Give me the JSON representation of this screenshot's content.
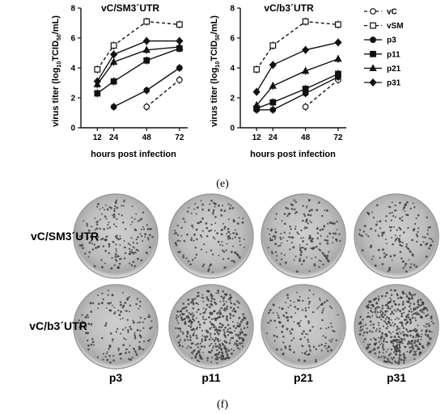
{
  "chart_data": [
    {
      "type": "line",
      "title": "vC/SM3´UTR",
      "xlabel": "hours post infection",
      "ylabel_parts": [
        "virus titer (log",
        "10",
        "TCID",
        "50",
        "/mL)"
      ],
      "x_ticks": [
        12,
        24,
        48,
        72
      ],
      "y_ticks": [
        0,
        2,
        4,
        6,
        8
      ],
      "xlim": [
        0,
        78
      ],
      "ylim": [
        0,
        8
      ],
      "series": [
        {
          "name": "vC",
          "marker": "circle-open",
          "dashed": true,
          "x": [
            48,
            72
          ],
          "y": [
            1.4,
            3.2
          ]
        },
        {
          "name": "vSM",
          "marker": "square-open",
          "dashed": true,
          "x": [
            12,
            24,
            48,
            72
          ],
          "y": [
            3.9,
            5.5,
            7.1,
            6.9
          ]
        },
        {
          "name": "p3",
          "marker": "circle",
          "dashed": false,
          "x": [
            24,
            48,
            72
          ],
          "y": [
            1.4,
            2.5,
            4.0
          ]
        },
        {
          "name": "p11",
          "marker": "square",
          "dashed": false,
          "x": [
            12,
            24,
            48,
            72
          ],
          "y": [
            2.3,
            3.1,
            4.5,
            5.3
          ]
        },
        {
          "name": "p21",
          "marker": "triangle",
          "dashed": false,
          "x": [
            12,
            24,
            48,
            72
          ],
          "y": [
            2.9,
            4.4,
            5.2,
            5.4
          ]
        },
        {
          "name": "p31",
          "marker": "diamond",
          "dashed": false,
          "x": [
            12,
            24,
            48,
            72
          ],
          "y": [
            3.1,
            4.9,
            5.8,
            5.8
          ]
        }
      ]
    },
    {
      "type": "line",
      "title": "vC/b3´UTR",
      "xlabel": "hours post infection",
      "ylabel_parts": [
        "virus titer (log",
        "10",
        "TCID",
        "50",
        "/mL)"
      ],
      "x_ticks": [
        12,
        24,
        48,
        72
      ],
      "y_ticks": [
        0,
        2,
        4,
        6,
        8
      ],
      "xlim": [
        0,
        78
      ],
      "ylim": [
        0,
        8
      ],
      "series": [
        {
          "name": "vC",
          "marker": "circle-open",
          "dashed": true,
          "x": [
            48,
            72
          ],
          "y": [
            1.4,
            3.2
          ]
        },
        {
          "name": "vSM",
          "marker": "square-open",
          "dashed": true,
          "x": [
            12,
            24,
            48,
            72
          ],
          "y": [
            3.9,
            5.5,
            7.1,
            6.9
          ]
        },
        {
          "name": "p3",
          "marker": "circle",
          "dashed": false,
          "x": [
            12,
            24,
            48,
            72
          ],
          "y": [
            1.2,
            1.2,
            2.3,
            3.4
          ]
        },
        {
          "name": "p11",
          "marker": "square",
          "dashed": false,
          "x": [
            12,
            24,
            48,
            72
          ],
          "y": [
            1.3,
            1.7,
            2.6,
            3.6
          ]
        },
        {
          "name": "p21",
          "marker": "triangle",
          "dashed": false,
          "x": [
            12,
            24,
            48,
            72
          ],
          "y": [
            1.5,
            2.8,
            3.8,
            4.6
          ]
        },
        {
          "name": "p31",
          "marker": "diamond",
          "dashed": false,
          "x": [
            12,
            24,
            48,
            72
          ],
          "y": [
            2.4,
            4.2,
            5.2,
            5.7
          ]
        }
      ]
    }
  ],
  "legend": [
    "vC",
    "vSM",
    "p3",
    "p11",
    "p21",
    "p31"
  ],
  "caption_e": "(e)",
  "caption_f": "(f)",
  "plaque_panel": {
    "row_labels": [
      "vC/SM3´UTR",
      "vC/b3´UTR"
    ],
    "col_labels": [
      "p3",
      "p11",
      "p21",
      "p31"
    ],
    "plaque_density": [
      [
        0.35,
        0.3,
        0.35,
        0.3
      ],
      [
        0.3,
        0.85,
        0.3,
        1.0
      ]
    ]
  }
}
